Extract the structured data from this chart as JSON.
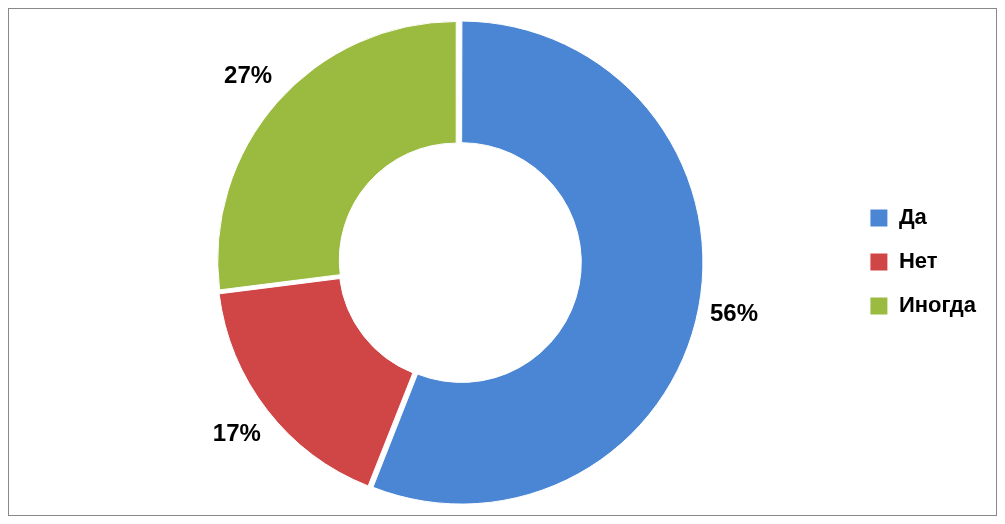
{
  "chart_data": {
    "type": "donut",
    "categories": [
      "Да",
      "Нет",
      "Иногда"
    ],
    "values": [
      56,
      17,
      27
    ],
    "colors": [
      "#4a86d4",
      "#d04545",
      "#9bbb40"
    ],
    "value_labels": [
      "56%",
      "17%",
      "27%"
    ],
    "legend": "right"
  }
}
